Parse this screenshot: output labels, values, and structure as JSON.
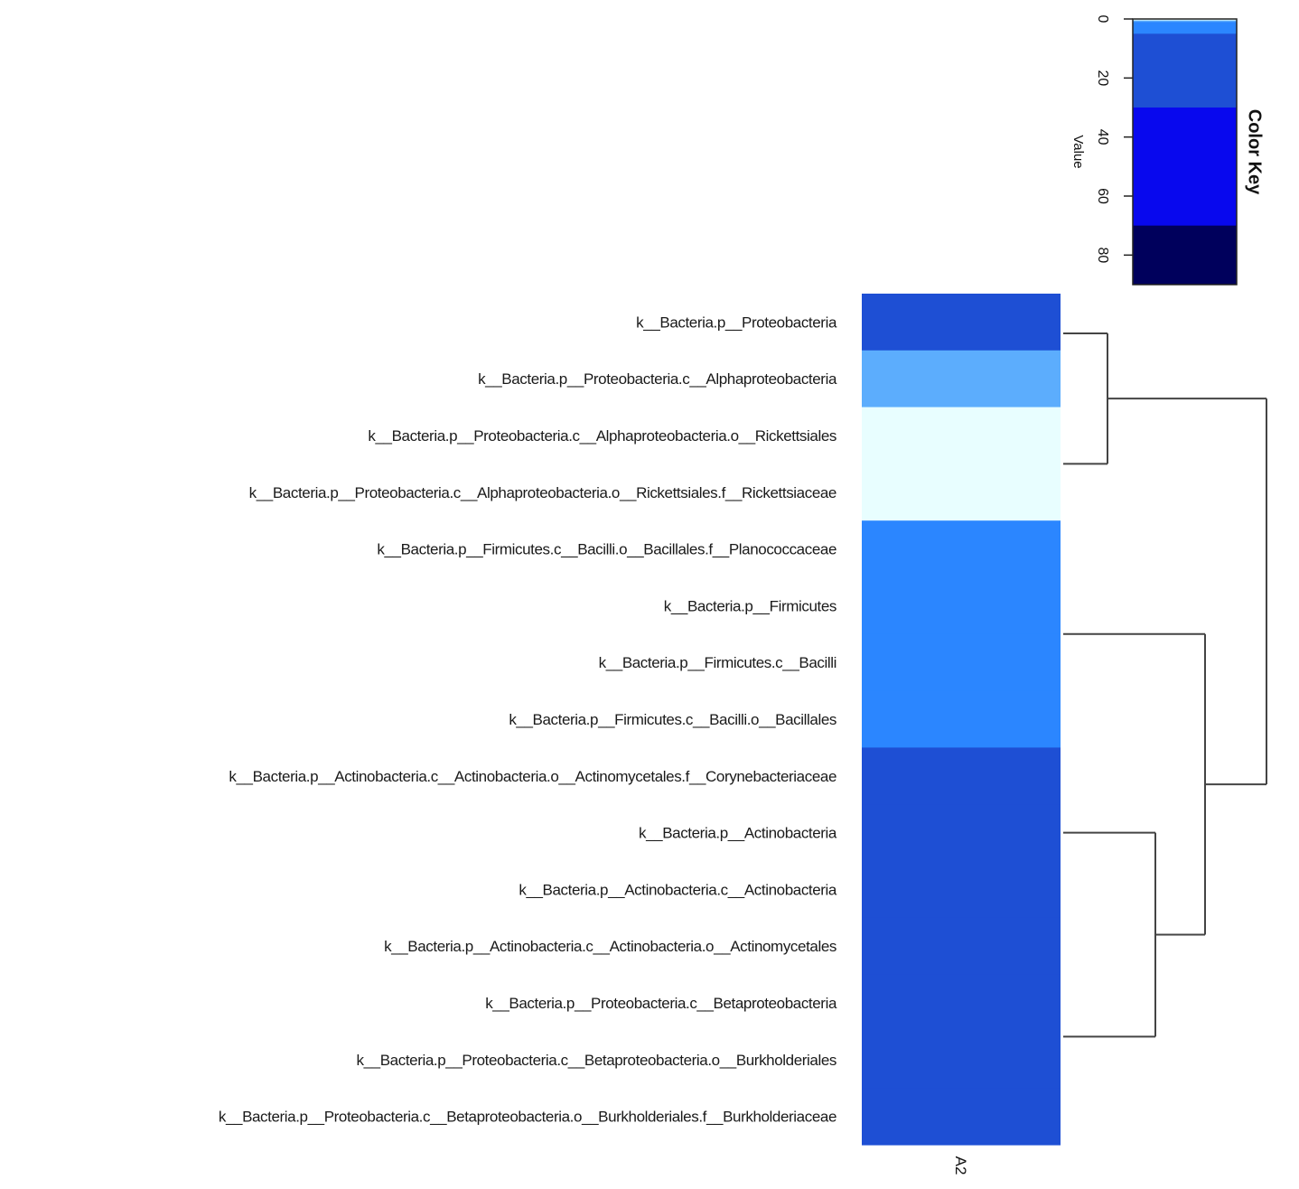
{
  "chart_data": {
    "type": "heatmap",
    "title": "",
    "columns": [
      "A2"
    ],
    "rows": [
      "k__Bacteria.p__Proteobacteria",
      "k__Bacteria.p__Proteobacteria.c__Alphaproteobacteria",
      "k__Bacteria.p__Proteobacteria.c__Alphaproteobacteria.o__Rickettsiales",
      "k__Bacteria.p__Proteobacteria.c__Alphaproteobacteria.o__Rickettsiales.f__Rickettsiaceae",
      "k__Bacteria.p__Firmicutes.c__Bacilli.o__Bacillales.f__Planococcaceae",
      "k__Bacteria.p__Firmicutes",
      "k__Bacteria.p__Firmicutes.c__Bacilli",
      "k__Bacteria.p__Firmicutes.c__Bacilli.o__Bacillales",
      "k__Bacteria.p__Actinobacteria.c__Actinobacteria.o__Actinomycetales.f__Corynebacteriaceae",
      "k__Bacteria.p__Actinobacteria",
      "k__Bacteria.p__Actinobacteria.c__Actinobacteria",
      "k__Bacteria.p__Actinobacteria.c__Actinobacteria.o__Actinomycetales",
      "k__Bacteria.p__Proteobacteria.c__Betaproteobacteria",
      "k__Bacteria.p__Proteobacteria.c__Betaproteobacteria.o__Burkholderiales",
      "k__Bacteria.p__Proteobacteria.c__Betaproteobacteria.o__Burkholderiales.f__Burkholderiaceae"
    ],
    "values": [
      15,
      0.7,
      0.1,
      0.1,
      2,
      2,
      2,
      2,
      15,
      15,
      15,
      15,
      15,
      15,
      15
    ],
    "color_key": {
      "title": "Color Key",
      "xlabel": "Value",
      "ticks": [
        0,
        20,
        40,
        60,
        80
      ],
      "range": [
        0,
        90
      ],
      "breaks": [
        {
          "from": 0,
          "to": 0.5,
          "color": "#e8feff"
        },
        {
          "from": 0.5,
          "to": 1,
          "color": "#5cadfd"
        },
        {
          "from": 1,
          "to": 5,
          "color": "#2b86ff"
        },
        {
          "from": 5,
          "to": 30,
          "color": "#1e4fd4"
        },
        {
          "from": 30,
          "to": 70,
          "color": "#0808ee"
        },
        {
          "from": 70,
          "to": 90,
          "color": "#00005c"
        }
      ]
    },
    "dendrogram": "rows",
    "dendrogram_color": "#444444"
  }
}
